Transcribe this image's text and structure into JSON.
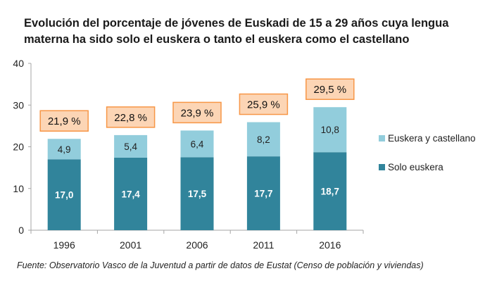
{
  "chart_data": {
    "type": "bar",
    "stacked": true,
    "title": "Evolución del porcentaje  de jóvenes de Euskadi de 15 a 29 años cuya lengua materna ha sido solo el euskera o tanto el euskera como el castellano",
    "source": "Fuente: Observatorio Vasco de la Juventud a partir de datos de Eustat (Censo de población y viviendas)",
    "categories": [
      "1996",
      "2001",
      "2006",
      "2011",
      "2016"
    ],
    "series": [
      {
        "name": "Solo euskera",
        "values": [
          17.0,
          17.4,
          17.5,
          17.7,
          18.7
        ],
        "labels": [
          "17,0",
          "17,4",
          "17,5",
          "17,7",
          "18,7"
        ],
        "color": "#31849b"
      },
      {
        "name": "Euskera y castellano",
        "values": [
          4.9,
          5.4,
          6.4,
          8.2,
          10.8
        ],
        "labels": [
          "4,9",
          "5,4",
          "6,4",
          "8,2",
          "10,8"
        ],
        "color": "#92cddc"
      }
    ],
    "totals": [
      21.9,
      22.8,
      23.9,
      25.9,
      29.5
    ],
    "total_labels": [
      "21,9 %",
      "22,8 %",
      "23,9 %",
      "25,9 %",
      "29,5 %"
    ],
    "total_box_colors": {
      "fill": "#fcd5b5",
      "border": "#f79646"
    },
    "ylim": [
      0,
      40
    ],
    "yticks": [
      "0",
      "10",
      "20",
      "30",
      "40"
    ],
    "grid": false,
    "legend_position": "right",
    "legend": [
      "Euskera y castellano",
      "Solo euskera"
    ]
  }
}
